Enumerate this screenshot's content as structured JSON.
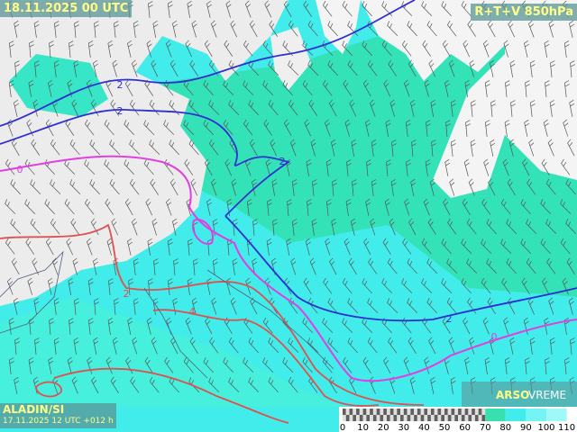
{
  "header": {
    "valid_time": "18.11.2025 00 UTC",
    "product": "R+T+V 850hPa"
  },
  "footer": {
    "model": "ALADIN/SI",
    "run": "17.11.2025 12 UTC +012 h"
  },
  "logo": {
    "brand": "ARSO",
    "service": "VREME"
  },
  "colorbar": {
    "labels": [
      "0",
      "10",
      "20",
      "30",
      "40",
      "50",
      "60",
      "70",
      "80",
      "90",
      "100",
      "110"
    ]
  },
  "contour_labels": [
    "2",
    "2",
    "0",
    "2",
    "2",
    "0",
    "2",
    "4"
  ]
}
